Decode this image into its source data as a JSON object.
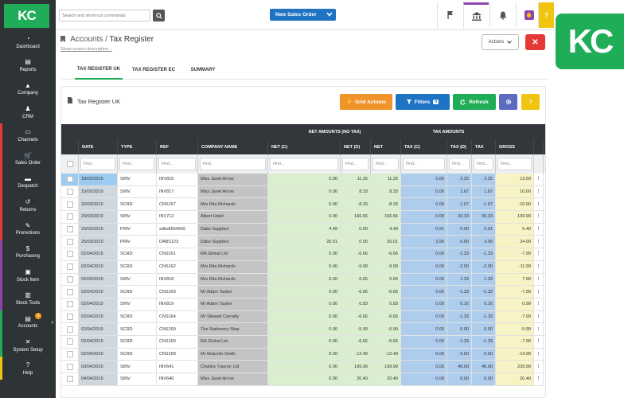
{
  "app": {
    "logo": "KC",
    "brand_badge": "KC",
    "title": "Tax Register"
  },
  "sidebar": {
    "items": [
      {
        "label": "Dashboard",
        "icon": "dashboard-icon",
        "color": "#2e3336"
      },
      {
        "label": "Reports",
        "icon": "reports-icon",
        "color": "#2e3336"
      },
      {
        "label": "Company",
        "icon": "company-icon",
        "color": "#2e3336"
      },
      {
        "label": "CRM",
        "icon": "crm-icon",
        "color": "#2e3336"
      },
      {
        "label": "Channels",
        "icon": "channels-icon",
        "color": "#e53935"
      },
      {
        "label": "Sales Order",
        "icon": "cart-icon",
        "color": "#e53935"
      },
      {
        "label": "Despatch",
        "icon": "despatch-icon",
        "color": "#e53935"
      },
      {
        "label": "Returns",
        "icon": "returns-icon",
        "color": "#e53935"
      },
      {
        "label": "Promotions",
        "icon": "promotions-icon",
        "color": "#e53935"
      },
      {
        "label": "Purchasing",
        "icon": "purchasing-icon",
        "color": "#8e44ad"
      },
      {
        "label": "Stock Item",
        "icon": "stock-item-icon",
        "color": "#8e44ad"
      },
      {
        "label": "Stock Tools",
        "icon": "stock-tools-icon",
        "color": "#8e44ad"
      },
      {
        "label": "Accounts",
        "icon": "accounts-icon",
        "color": "#20ad57",
        "badge": "4"
      },
      {
        "label": "System Setup",
        "icon": "system-setup-icon",
        "color": "#20ad57"
      },
      {
        "label": "Help",
        "icon": "help-icon",
        "color": "#f1c40f"
      }
    ]
  },
  "topbar": {
    "search_placeholder": "Search and short-cut commands",
    "new_sales_order": "New Sales Order"
  },
  "breadcrumb": {
    "parent": "Accounts",
    "separator": "/",
    "current": "Tax Register",
    "desc": "Show screen description..."
  },
  "actions": {
    "actions_label": "Actions",
    "close_label": "✕"
  },
  "tabs": [
    "TAX REGISTER UK",
    "TAX REGISTER EC",
    "SUMMARY"
  ],
  "panel": {
    "title": "Tax Register UK",
    "buttons": {
      "grid_actions": "Grid Actions",
      "filters": "Filters",
      "filter_count": "0",
      "refresh": "Refresh"
    }
  },
  "grid": {
    "group_headers": {
      "net": "NET AMOUNTS (NO TAX)",
      "tax": "TAX AMOUNTS"
    },
    "columns": [
      "DATE",
      "TYPE",
      "REF",
      "COMPANY NAME",
      "NET (C)",
      "NET (D)",
      "NET",
      "TAX (C)",
      "TAX (D)",
      "TAX",
      "GROSS"
    ],
    "filter_placeholder": "Find...",
    "rows": [
      [
        "18/02/2019",
        "SINV",
        "INV816",
        "Miss Janet Arrow",
        "0.00",
        "11.25",
        "11.25",
        "0.00",
        "2.25",
        "2.25",
        "13.50"
      ],
      [
        "15/02/2019",
        "SINV",
        "INV817",
        "Miss Janet Arrow",
        "0.00",
        "8.33",
        "8.33",
        "0.00",
        "1.67",
        "1.67",
        "10.00"
      ],
      [
        "20/03/2019",
        "SCRD",
        "CNS157",
        "Mrs Rita Richards",
        "0.00",
        "-8.33",
        "-8.33",
        "0.00",
        "-1.67",
        "-1.67",
        "-10.00"
      ],
      [
        "20/03/2019",
        "SINV",
        "INV712",
        "Albert Hotel",
        "0.00",
        "166.66",
        "166.66",
        "0.00",
        "33.33",
        "33.33",
        "199.99"
      ],
      [
        "23/03/2019",
        "PINV",
        "sdfsdf564565",
        "Dabs Supplies",
        "4.49",
        "0.00",
        "4.49",
        "0.91",
        "0.00",
        "0.91",
        "5.40"
      ],
      [
        "25/03/2019",
        "PINV",
        "DABS123",
        "Dabs Supplies",
        "20.01",
        "0.00",
        "20.01",
        "3.99",
        "0.00",
        "3.99",
        "24.00"
      ],
      [
        "02/04/2019",
        "SCRD",
        "CNS161",
        "RA Global Ltd",
        "0.00",
        "-6.66",
        "-6.66",
        "0.00",
        "-1.33",
        "-1.33",
        "-7.99"
      ],
      [
        "02/04/2019",
        "SCRD",
        "CNS162",
        "Mrs Rita Richards",
        "0.00",
        "-9.99",
        "-9.99",
        "0.00",
        "-2.00",
        "-2.00",
        "-11.99"
      ],
      [
        "02/04/2019",
        "SINV",
        "INV818",
        "Mrs Rita Richards",
        "0.00",
        "6.66",
        "6.66",
        "0.00",
        "1.33",
        "1.33",
        "7.99"
      ],
      [
        "02/04/2019",
        "SCRD",
        "CNS163",
        "Mr Adam Tasker",
        "0.00",
        "-6.66",
        "-6.66",
        "0.00",
        "-1.33",
        "-1.33",
        "-7.99"
      ],
      [
        "02/04/2019",
        "SINV",
        "INV819",
        "Mr Adam Tasker",
        "0.00",
        "0.83",
        "0.83",
        "0.00",
        "0.16",
        "0.16",
        "0.99"
      ],
      [
        "02/04/2019",
        "SCRD",
        "CNS164",
        "Mr Stewart Carnally",
        "0.00",
        "-6.66",
        "-6.66",
        "0.00",
        "-1.33",
        "-1.33",
        "-7.99"
      ],
      [
        "02/04/2019",
        "SCRD",
        "CNS159",
        "The Stationery Stop",
        "0.00",
        "-5.99",
        "-5.99",
        "0.00",
        "0.00",
        "0.00",
        "-5.99"
      ],
      [
        "02/04/2019",
        "SCRD",
        "CNS160",
        "RA Global Ltd",
        "0.00",
        "-6.66",
        "-6.66",
        "0.00",
        "-1.33",
        "-1.33",
        "-7.99"
      ],
      [
        "02/04/2019",
        "SCRD",
        "CNS158",
        "Mr Malcolm Smith",
        "0.00",
        "-12.49",
        "-12.49",
        "0.00",
        "-2.50",
        "-2.50",
        "-14.99"
      ],
      [
        "03/04/2019",
        "SINV",
        "INV641",
        "Charles Traynor Ltd",
        "0.00",
        "199.99",
        "199.99",
        "0.00",
        "40.00",
        "40.00",
        "239.99"
      ],
      [
        "04/04/2019",
        "SINV",
        "INV640",
        "Miss Janet Arrow",
        "0.00",
        "20.40",
        "20.40",
        "0.00",
        "0.00",
        "0.00",
        "20.40"
      ]
    ]
  }
}
